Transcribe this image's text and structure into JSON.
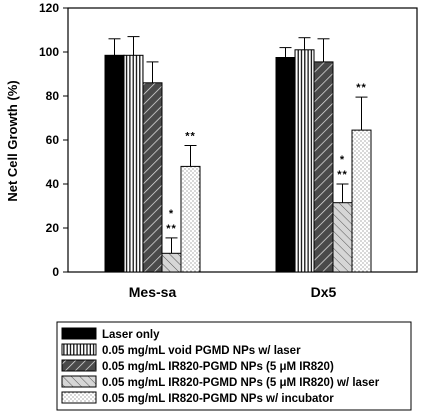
{
  "chart_data": {
    "type": "bar",
    "title": "",
    "xlabel": "",
    "ylabel": "Net Cell Growth (%)",
    "ylim": [
      0,
      120
    ],
    "yticks": [
      0,
      20,
      40,
      60,
      80,
      100,
      120
    ],
    "categories": [
      "Mes-sa",
      "Dx5"
    ],
    "grid": false,
    "legend_position": "bottom",
    "series": [
      {
        "name": "Laser only",
        "pattern": "solid-black",
        "values": [
          98.5,
          97.5
        ],
        "errors": [
          7.5,
          4.5
        ],
        "sig": [
          "",
          ""
        ]
      },
      {
        "name": "0.05 mg/mL void PGMD NPs w/ laser",
        "pattern": "vertical-lines",
        "values": [
          98.5,
          101
        ],
        "errors": [
          8.5,
          5.5
        ],
        "sig": [
          "",
          ""
        ]
      },
      {
        "name": "0.05 mg/mL IR820-PGMD NPs (5 μM IR820)",
        "pattern": "dark-diagonal",
        "values": [
          86,
          95.5
        ],
        "errors": [
          9.5,
          10.5
        ],
        "sig": [
          "",
          ""
        ]
      },
      {
        "name": "0.05 mg/mL IR820-PGMD NPs (5 μM IR820) w/ laser",
        "pattern": "light-diagonal",
        "values": [
          8.5,
          31.5
        ],
        "errors": [
          7,
          8.5
        ],
        "sig": [
          "*\n**",
          "*\n**"
        ]
      },
      {
        "name": "0.05 mg/mL IR820-PGMD NPs w/ incubator",
        "pattern": "dots",
        "values": [
          48,
          64.5
        ],
        "errors": [
          9.5,
          15
        ],
        "sig": [
          "**",
          "**"
        ]
      }
    ]
  }
}
